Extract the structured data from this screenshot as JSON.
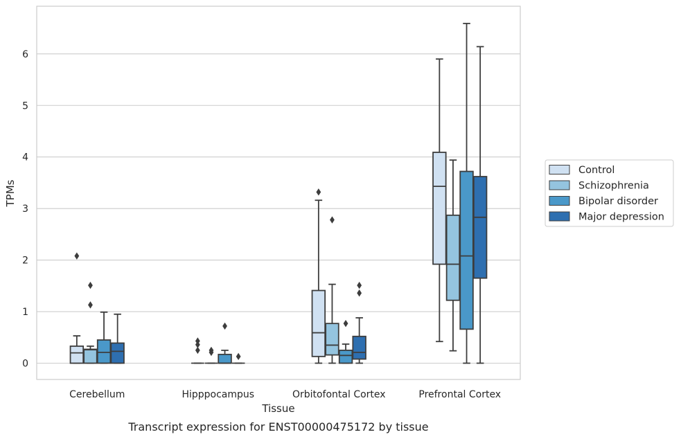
{
  "caption": "Transcript expression for ENST00000475172 by tissue",
  "chart_data": {
    "type": "box",
    "xlabel": "Tissue",
    "ylabel": "TPMs",
    "ylim": [
      -0.32,
      6.92
    ],
    "yticks": [
      0,
      1,
      2,
      3,
      4,
      5,
      6
    ],
    "grid": true,
    "legend_position": "right",
    "categories": [
      "Cerebellum",
      "Hipppocampus",
      "Orbitofontal Cortex",
      "Prefrontal Cortex"
    ],
    "series": [
      {
        "name": "Control",
        "color": "#d0e1f2",
        "boxes": [
          {
            "whislo": 0,
            "q1": 0,
            "med": 0.2,
            "q3": 0.33,
            "whishi": 0.53,
            "fliers": [
              2.08
            ]
          },
          {
            "whislo": 0,
            "q1": 0,
            "med": 0,
            "q3": 0,
            "whishi": 0,
            "fliers": [
              0.43,
              0.36,
              0.25
            ]
          },
          {
            "whislo": 0,
            "q1": 0.13,
            "med": 0.59,
            "q3": 1.41,
            "whishi": 3.16,
            "fliers": [
              3.32
            ]
          },
          {
            "whislo": 0.42,
            "q1": 1.92,
            "med": 3.43,
            "q3": 4.09,
            "whishi": 5.9,
            "fliers": []
          }
        ]
      },
      {
        "name": "Schizophrenia",
        "color": "#94c4df",
        "boxes": [
          {
            "whislo": 0,
            "q1": 0,
            "med": 0.26,
            "q3": 0.27,
            "whishi": 0.33,
            "fliers": [
              1.51,
              1.13
            ]
          },
          {
            "whislo": 0,
            "q1": 0,
            "med": 0,
            "q3": 0,
            "whishi": 0,
            "fliers": [
              0.25,
              0.21
            ]
          },
          {
            "whislo": 0,
            "q1": 0.16,
            "med": 0.35,
            "q3": 0.77,
            "whishi": 1.53,
            "fliers": [
              2.78
            ]
          },
          {
            "whislo": 0.24,
            "q1": 1.22,
            "med": 1.92,
            "q3": 2.87,
            "whishi": 3.94,
            "fliers": []
          }
        ]
      },
      {
        "name": "Bipolar disorder",
        "color": "#4a98c9",
        "boxes": [
          {
            "whislo": 0,
            "q1": 0,
            "med": 0.21,
            "q3": 0.45,
            "whishi": 0.99,
            "fliers": []
          },
          {
            "whislo": 0,
            "q1": 0,
            "med": 0,
            "q3": 0.17,
            "whishi": 0.25,
            "fliers": [
              0.72
            ]
          },
          {
            "whislo": 0,
            "q1": 0,
            "med": 0.15,
            "q3": 0.25,
            "whishi": 0.37,
            "fliers": [
              0.77
            ]
          },
          {
            "whislo": 0,
            "q1": 0.66,
            "med": 2.08,
            "q3": 3.72,
            "whishi": 6.59,
            "fliers": []
          }
        ]
      },
      {
        "name": "Major depression",
        "color": "#2e6fb0",
        "boxes": [
          {
            "whislo": 0,
            "q1": 0,
            "med": 0.23,
            "q3": 0.39,
            "whishi": 0.95,
            "fliers": []
          },
          {
            "whislo": 0,
            "q1": 0,
            "med": 0,
            "q3": 0,
            "whishi": 0,
            "fliers": [
              0.13
            ]
          },
          {
            "whislo": 0,
            "q1": 0.08,
            "med": 0.21,
            "q3": 0.52,
            "whishi": 0.88,
            "fliers": [
              1.51,
              1.36
            ]
          },
          {
            "whislo": 0,
            "q1": 1.65,
            "med": 2.83,
            "q3": 3.62,
            "whishi": 6.14,
            "fliers": []
          }
        ]
      }
    ]
  }
}
